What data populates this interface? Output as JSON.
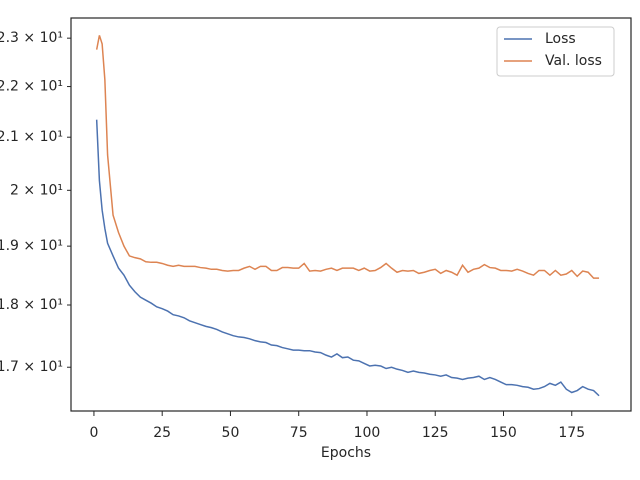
{
  "chart_data": {
    "type": "line",
    "x_label": "Epochs",
    "log_y": true,
    "legend": "upper right",
    "xlim": [
      -8.4,
      196.7
    ],
    "xticks": [
      0,
      25,
      50,
      75,
      100,
      125,
      150,
      175
    ],
    "ylim": [
      16.33,
      23.43
    ],
    "yticks": [
      {
        "value": 17,
        "label": "1.7 × 10¹"
      },
      {
        "value": 18,
        "label": "1.8 × 10¹"
      },
      {
        "value": 19,
        "label": "1.9 × 10¹"
      },
      {
        "value": 20,
        "label": "2 × 10¹"
      },
      {
        "value": 21,
        "label": "2.1 × 10¹"
      },
      {
        "value": 22,
        "label": "2.2 × 10¹"
      },
      {
        "value": 23,
        "label": "2.3 × 10¹"
      }
    ],
    "x": [
      1,
      2,
      3,
      4,
      5,
      7,
      9,
      11,
      13,
      15,
      17,
      19,
      21,
      23,
      25,
      27,
      29,
      31,
      33,
      35,
      37,
      39,
      41,
      43,
      45,
      47,
      49,
      51,
      53,
      55,
      57,
      59,
      61,
      63,
      65,
      67,
      69,
      71,
      73,
      75,
      77,
      79,
      81,
      83,
      85,
      87,
      89,
      91,
      93,
      95,
      97,
      99,
      101,
      103,
      105,
      107,
      109,
      111,
      113,
      115,
      117,
      119,
      121,
      123,
      125,
      127,
      129,
      131,
      133,
      135,
      137,
      139,
      141,
      143,
      145,
      147,
      149,
      151,
      153,
      155,
      157,
      159,
      161,
      163,
      165,
      167,
      169,
      171,
      173,
      175,
      177,
      179,
      181,
      183,
      185
    ],
    "series": [
      {
        "name": "Loss",
        "color": "#4c72b0",
        "values": [
          21.34,
          20.18,
          19.64,
          19.31,
          19.05,
          18.83,
          18.62,
          18.5,
          18.33,
          18.22,
          18.13,
          18.08,
          18.03,
          17.97,
          17.94,
          17.9,
          17.84,
          17.82,
          17.79,
          17.74,
          17.71,
          17.68,
          17.65,
          17.63,
          17.6,
          17.56,
          17.53,
          17.5,
          17.48,
          17.47,
          17.45,
          17.42,
          17.4,
          17.39,
          17.35,
          17.34,
          17.31,
          17.29,
          17.27,
          17.27,
          17.26,
          17.26,
          17.24,
          17.23,
          17.19,
          17.16,
          17.21,
          17.15,
          17.16,
          17.11,
          17.1,
          17.06,
          17.02,
          17.03,
          17.02,
          16.98,
          17.0,
          16.97,
          16.95,
          16.92,
          16.94,
          16.92,
          16.91,
          16.89,
          16.88,
          16.86,
          16.88,
          16.84,
          16.83,
          16.81,
          16.83,
          16.84,
          16.86,
          16.81,
          16.84,
          16.81,
          16.77,
          16.73,
          16.73,
          16.72,
          16.7,
          16.69,
          16.66,
          16.67,
          16.7,
          16.75,
          16.72,
          16.77,
          16.66,
          16.61,
          16.64,
          16.7,
          16.66,
          16.64,
          16.56
        ]
      },
      {
        "name": "Val. loss",
        "color": "#dd8452",
        "values": [
          22.76,
          23.06,
          22.88,
          22.14,
          20.66,
          19.55,
          19.24,
          19.0,
          18.83,
          18.8,
          18.78,
          18.73,
          18.72,
          18.72,
          18.7,
          18.67,
          18.65,
          18.67,
          18.65,
          18.65,
          18.65,
          18.63,
          18.62,
          18.6,
          18.6,
          18.58,
          18.57,
          18.58,
          18.58,
          18.62,
          18.65,
          18.6,
          18.65,
          18.65,
          18.58,
          18.58,
          18.63,
          18.63,
          18.62,
          18.62,
          18.7,
          18.57,
          18.58,
          18.57,
          18.6,
          18.62,
          18.58,
          18.62,
          18.62,
          18.62,
          18.58,
          18.62,
          18.57,
          18.58,
          18.63,
          18.7,
          18.62,
          18.55,
          18.58,
          18.57,
          18.58,
          18.53,
          18.55,
          18.58,
          18.6,
          18.53,
          18.58,
          18.55,
          18.5,
          18.67,
          18.55,
          18.6,
          18.62,
          18.68,
          18.63,
          18.62,
          18.58,
          18.58,
          18.57,
          18.6,
          18.57,
          18.53,
          18.5,
          18.58,
          18.58,
          18.5,
          18.58,
          18.5,
          18.52,
          18.58,
          18.48,
          18.57,
          18.55,
          18.45,
          18.45
        ]
      }
    ]
  }
}
